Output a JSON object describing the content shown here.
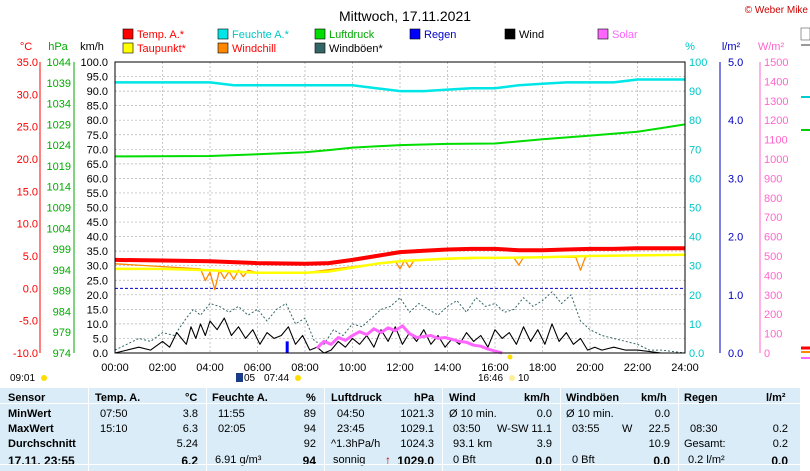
{
  "chart_data": {
    "type": "line",
    "title": "Mittwoch, 17.11.2021",
    "copyright": "© Weber Mike",
    "x_ticks": [
      "00:00",
      "02:00",
      "04:00",
      "06:00",
      "08:00",
      "10:00",
      "12:00",
      "14:00",
      "16:00",
      "18:00",
      "20:00",
      "22:00",
      "24:00"
    ],
    "axes": {
      "temp": {
        "label": "°C",
        "color": "#ff0000",
        "min": -10,
        "max": 35,
        "ticks": [
          "35.0",
          "30.0",
          "25.0",
          "20.0",
          "15.0",
          "10.0",
          "5.0",
          "0.0",
          "-5.0",
          "-10.0"
        ]
      },
      "hpa": {
        "label": "hPa",
        "color": "#00aa00",
        "min": 974,
        "max": 1044,
        "ticks": [
          "1044",
          "1039",
          "1034",
          "1029",
          "1024",
          "1019",
          "1014",
          "1009",
          "1004",
          "999",
          "994",
          "989",
          "984",
          "979",
          "974"
        ]
      },
      "kmh": {
        "label": "km/h",
        "color": "#000000",
        "min": 0,
        "max": 100,
        "ticks": [
          "100.0",
          "95.0",
          "90.0",
          "85.0",
          "80.0",
          "75.0",
          "70.0",
          "65.0",
          "60.0",
          "55.0",
          "50.0",
          "45.0",
          "40.0",
          "35.0",
          "30.0",
          "25.0",
          "20.0",
          "15.0",
          "10.0",
          "5.0",
          "0.0"
        ]
      },
      "pct": {
        "label": "%",
        "color": "#00c8c8",
        "min": 0,
        "max": 100,
        "ticks": [
          "100",
          "90",
          "80",
          "70",
          "60",
          "50",
          "40",
          "30",
          "20",
          "10",
          "0.0"
        ]
      },
      "lm2": {
        "label": "l/m²",
        "color": "#0000c0",
        "min": 0,
        "max": 5,
        "ticks": [
          "5.0",
          "4.0",
          "3.0",
          "2.0",
          "1.0",
          "0.0"
        ]
      },
      "wm2": {
        "label": "W/m²",
        "color": "#ff66cc",
        "min": 0,
        "max": 1500,
        "ticks": [
          "1500",
          "1400",
          "1300",
          "1200",
          "1100",
          "1000",
          "900",
          "800",
          "700",
          "600",
          "500",
          "400",
          "300",
          "200",
          "100",
          "0"
        ]
      }
    },
    "legend": [
      {
        "name": "Temp. A.*",
        "color": "#ff0000"
      },
      {
        "name": "Feuchte A.*",
        "color": "#00e6e6"
      },
      {
        "name": "Luftdruck",
        "color": "#00dd00"
      },
      {
        "name": "Regen",
        "color": "#0000ff"
      },
      {
        "name": "Wind",
        "color": "#000000"
      },
      {
        "name": "Solar",
        "color": "#ff66ff"
      },
      {
        "name": "Taupunkt*",
        "color": "#ffff00"
      },
      {
        "name": "Windchill",
        "color": "#ff8800"
      },
      {
        "name": "Windböen*",
        "color": "#336666"
      }
    ],
    "series": [
      {
        "name": "Temp. A.*",
        "axis": "temp",
        "color": "#ff0000",
        "x": [
          0,
          2,
          4,
          6,
          8,
          9,
          10,
          11,
          12,
          13,
          14,
          15,
          16,
          17,
          18,
          19,
          20,
          21,
          22,
          23,
          24
        ],
        "y": [
          4.4,
          4.3,
          4.2,
          3.9,
          3.8,
          3.9,
          4.4,
          5.0,
          5.6,
          5.8,
          6.0,
          6.1,
          6.1,
          5.9,
          5.9,
          6.0,
          6.1,
          6.1,
          6.2,
          6.2,
          6.2
        ]
      },
      {
        "name": "Taupunkt*",
        "axis": "temp",
        "color": "#ffff00",
        "x": [
          0,
          2,
          4,
          6,
          8,
          9,
          10,
          11,
          12,
          13,
          14,
          15,
          16,
          18,
          20,
          22,
          24
        ],
        "y": [
          3.0,
          3.0,
          2.8,
          2.4,
          2.4,
          2.6,
          3.2,
          3.8,
          4.2,
          4.4,
          4.6,
          4.7,
          4.7,
          4.8,
          5.0,
          5.1,
          5.2
        ]
      },
      {
        "name": "Windchill",
        "axis": "temp",
        "color": "#ff8800",
        "x": [
          0,
          3.6,
          3.8,
          4.0,
          4.2,
          4.4,
          4.6,
          4.8,
          5.0,
          5.2,
          5.4,
          5.6,
          6,
          8,
          11.8,
          12,
          12.2,
          12.4,
          12.6,
          13,
          16,
          16.8,
          17,
          17.2,
          18,
          19.4,
          19.6,
          19.8,
          20,
          24
        ],
        "y": [
          3.8,
          3.0,
          1.2,
          2.5,
          -0.2,
          2.8,
          1.5,
          2.6,
          1.4,
          2.8,
          1.8,
          2.8,
          2.4,
          2.4,
          4.2,
          3.0,
          4.4,
          3.2,
          4.4,
          4.4,
          4.7,
          4.7,
          3.6,
          4.8,
          4.8,
          4.8,
          2.8,
          4.8,
          5.0,
          5.2
        ]
      },
      {
        "name": "Feuchte A.*",
        "axis": "pct",
        "color": "#00e6e6",
        "x": [
          0,
          4,
          5,
          8,
          9,
          10,
          11,
          12,
          13,
          14,
          15,
          16,
          17,
          18,
          19,
          20,
          21,
          22,
          24
        ],
        "y": [
          93,
          93,
          92,
          92,
          92,
          92,
          91,
          90,
          90,
          90.5,
          91,
          91,
          92,
          92.5,
          93,
          93,
          93,
          94,
          94
        ]
      },
      {
        "name": "Luftdruck",
        "axis": "hpa",
        "color": "#00dd00",
        "x": [
          0,
          4,
          6,
          8,
          9,
          10,
          12,
          14,
          16,
          18,
          20,
          22,
          24
        ],
        "y": [
          1021.3,
          1021.4,
          1021.8,
          1022.3,
          1022.8,
          1023.4,
          1024.0,
          1024.3,
          1024.4,
          1025.4,
          1026.3,
          1027.2,
          1029.0
        ]
      },
      {
        "name": "Windböen*",
        "axis": "kmh",
        "color": "#336666",
        "x": [
          0,
          0.5,
          1,
          1.5,
          2,
          2.5,
          3,
          3.3,
          3.6,
          4,
          4.4,
          4.8,
          5.2,
          5.6,
          6,
          6.4,
          6.8,
          7.2,
          7.6,
          8,
          8.4,
          8.8,
          9.2,
          9.6,
          10,
          10.4,
          10.8,
          11.2,
          11.6,
          12,
          12.4,
          12.8,
          13.2,
          13.6,
          14,
          14.4,
          14.8,
          15.2,
          15.6,
          16,
          16.4,
          16.8,
          17.2,
          17.6,
          18,
          18.4,
          18.8,
          19.2,
          19.6,
          20,
          20.5,
          21,
          21.5,
          22,
          22.5,
          23,
          24
        ],
        "y": [
          1,
          3,
          5,
          4,
          7,
          6,
          12,
          15,
          13,
          17,
          16,
          14,
          16,
          13,
          15,
          11,
          15,
          17,
          10,
          12,
          4,
          3,
          8,
          6,
          10,
          9,
          12,
          15,
          16,
          19,
          14,
          17,
          15,
          13,
          16,
          18,
          14,
          19,
          16,
          17,
          14,
          15,
          19,
          16,
          18,
          21,
          17,
          20,
          11,
          8,
          6,
          5,
          4,
          3,
          1,
          1,
          0
        ]
      },
      {
        "name": "Wind",
        "axis": "kmh",
        "color": "#000000",
        "x": [
          0,
          0.5,
          1,
          1.5,
          2,
          2.3,
          2.6,
          3,
          3.2,
          3.4,
          3.6,
          3.8,
          4,
          4.3,
          4.6,
          4.9,
          5.2,
          5.5,
          5.8,
          6.1,
          6.4,
          6.7,
          7,
          7.3,
          7.6,
          7.9,
          8.2,
          8.5,
          8.8,
          9.1,
          9.4,
          9.7,
          10,
          10.3,
          10.6,
          10.9,
          11.2,
          11.5,
          11.8,
          12.1,
          12.4,
          12.7,
          13,
          13.3,
          13.6,
          13.9,
          14.2,
          14.5,
          14.8,
          15.1,
          15.4,
          15.7,
          16,
          16.3,
          16.6,
          16.9,
          17.2,
          17.5,
          17.8,
          18.1,
          18.4,
          18.7,
          19,
          19.3,
          19.6,
          19.9,
          20.2,
          20.5,
          21,
          21.5,
          22,
          23,
          24
        ],
        "y": [
          0,
          1,
          2,
          1,
          4,
          2,
          7,
          3,
          9,
          5,
          10,
          6,
          11,
          8,
          12,
          6,
          9,
          5,
          8,
          3,
          7,
          5,
          6,
          9,
          3,
          6,
          1,
          2,
          0,
          1,
          4,
          2,
          5,
          3,
          6,
          2,
          8,
          4,
          9,
          3,
          7,
          4,
          8,
          3,
          6,
          2,
          5,
          3,
          7,
          4,
          6,
          2,
          8,
          5,
          7,
          3,
          9,
          4,
          8,
          3,
          10,
          4,
          7,
          3,
          5,
          1,
          2,
          1,
          2,
          1,
          1,
          0,
          0
        ]
      },
      {
        "name": "Solar",
        "axis": "wm2",
        "color": "#ff66ff",
        "x": [
          8.5,
          8.8,
          9.1,
          9.4,
          9.7,
          10,
          10.3,
          10.6,
          10.9,
          11.2,
          11.5,
          11.8,
          12.1,
          12.4,
          12.7,
          13,
          13.3,
          13.6,
          13.9,
          14.2,
          14.5,
          14.8,
          15.1,
          15.4,
          15.7,
          16,
          16.3
        ],
        "y": [
          25,
          60,
          45,
          80,
          65,
          90,
          110,
          95,
          125,
          105,
          130,
          115,
          140,
          100,
          80,
          85,
          90,
          75,
          80,
          70,
          60,
          55,
          40,
          35,
          20,
          10,
          0
        ]
      }
    ],
    "rain_bars": [
      {
        "x": 7.25,
        "y": 0.2
      }
    ]
  },
  "markers": {
    "sunrise": "07:44",
    "sunset": "16:46",
    "left_time": "09:01",
    "moon_date": "05",
    "moon_hour": "10"
  },
  "table": {
    "headers": {
      "sensor": "Sensor",
      "temp": "Temp. A.",
      "temp_unit": "°C",
      "hum": "Feuchte A.",
      "hum_unit": "%",
      "press": "Luftdruck",
      "press_unit": "hPa",
      "wind": "Wind",
      "wind_unit": "km/h",
      "gust": "Windböen",
      "gust_unit": "km/h",
      "rain": "Regen",
      "rain_unit": "l/m²"
    },
    "rows": {
      "min": {
        "label": "MinWert",
        "temp_time": "07:50",
        "temp_val": "3.8",
        "hum_time": "11:55",
        "hum_val": "89",
        "press_time": "04:50",
        "press_val": "1021.3",
        "wind_label": "Ø 10 min.",
        "wind_val": "0.0",
        "gust_label": "Ø 10 min.",
        "gust_val": "0.0"
      },
      "max": {
        "label": "MaxWert",
        "temp_time": "15:10",
        "temp_val": "6.3",
        "hum_time": "02:05",
        "hum_val": "94",
        "press_time": "23:45",
        "press_val": "1029.1",
        "wind_time": "03:50",
        "wind_dir": "W-SW",
        "wind_val": "11.1",
        "gust_time": "03:55",
        "gust_dir": "W",
        "gust_val": "22.5",
        "rain_time": "08:30",
        "rain_val": "0.2"
      },
      "avg": {
        "label": "Durchschnitt",
        "temp_val": "5.24",
        "hum_val": "92",
        "press_label": "^1.3hPa/h",
        "press_val": "1024.3",
        "wind_dist": "93.1 km",
        "wind_val": "3.9",
        "gust_val": "10.9",
        "rain_label": "Gesamt:",
        "rain_val": "0.2"
      },
      "cur": {
        "label": "17.11. 23:55",
        "temp_val": "6.2",
        "hum_abs": "6.91 g/m³",
        "hum_val": "94",
        "press_label": "sonnig",
        "press_val": "1029.0",
        "wind_bft": "0 Bft",
        "wind_val": "0.0",
        "gust_bft": "0 Bft",
        "gust_val": "0.0",
        "rain_label": "0.2 l/m²",
        "rain_val": "0.0"
      }
    }
  }
}
